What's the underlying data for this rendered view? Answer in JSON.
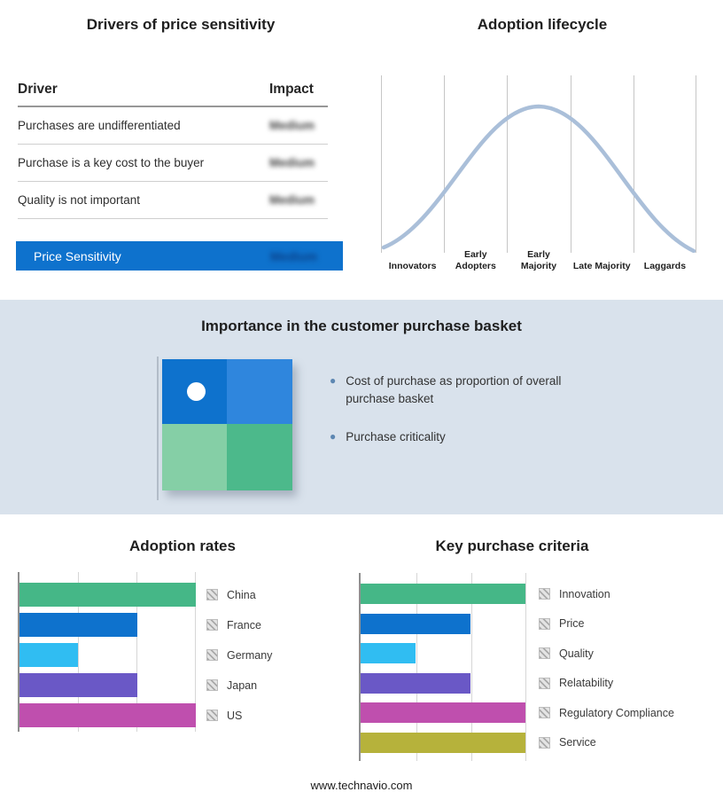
{
  "colors": {
    "accent_blue": "#0e72cd",
    "band_bg": "#d9e2ec",
    "curve": "#aabfd9",
    "green": "#45b787",
    "blue": "#0e72cd",
    "cyan": "#30bdf2",
    "purple": "#6a58c6",
    "magenta": "#bf4fae",
    "olive": "#b6b23b",
    "light_green": "#85cfa6"
  },
  "price_sensitivity": {
    "title": "Drivers of price sensitivity",
    "columns": {
      "driver": "Driver",
      "impact": "Impact"
    },
    "rows": [
      {
        "driver": "Purchases are undifferentiated",
        "impact": "Medium"
      },
      {
        "driver": "Purchase is a key cost to the buyer",
        "impact": "Medium"
      },
      {
        "driver": "Quality is not important",
        "impact": "Medium"
      }
    ],
    "summary_row": {
      "label": "Price Sensitivity",
      "impact": "Medium"
    }
  },
  "adoption_lifecycle": {
    "title": "Adoption lifecycle",
    "stages": [
      "Innovators",
      "Early Adopters",
      "Early Majority",
      "Late Majority",
      "Laggards"
    ]
  },
  "purchase_basket": {
    "title": "Importance in the customer purchase basket",
    "bullets": [
      "Cost of purchase as proportion of overall purchase basket",
      "Purchase criticality"
    ]
  },
  "chart_data": [
    {
      "type": "line",
      "title": "Adoption lifecycle",
      "categories": [
        "Innovators",
        "Early Adopters",
        "Early Majority",
        "Late Majority",
        "Laggards"
      ],
      "shape": "bell-curve",
      "description": "Normal-distribution adoption curve peaking at Early Majority",
      "grid": true,
      "line_color": "#aabfd9"
    },
    {
      "type": "bar",
      "orientation": "horizontal",
      "title": "Adoption rates",
      "categories": [
        "China",
        "France",
        "Germany",
        "Japan",
        "US"
      ],
      "values": [
        3,
        2,
        1,
        2,
        3
      ],
      "xlim": [
        0,
        3
      ],
      "grid": true,
      "legend_position": "right",
      "colors": [
        "#45b787",
        "#0e72cd",
        "#30bdf2",
        "#6a58c6",
        "#bf4fae"
      ]
    },
    {
      "type": "bar",
      "orientation": "horizontal",
      "title": "Key purchase criteria",
      "categories": [
        "Innovation",
        "Price",
        "Quality",
        "Relatability",
        "Regulatory Compliance",
        "Service"
      ],
      "values": [
        3,
        2,
        1,
        2,
        3,
        3
      ],
      "xlim": [
        0,
        3
      ],
      "grid": true,
      "legend_position": "right",
      "colors": [
        "#45b787",
        "#0e72cd",
        "#30bdf2",
        "#6a58c6",
        "#bf4fae",
        "#b6b23b"
      ]
    }
  ],
  "footer": {
    "url": "www.technavio.com"
  }
}
